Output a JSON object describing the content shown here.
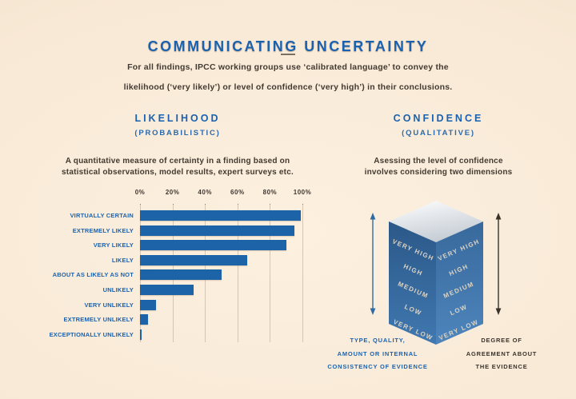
{
  "page": {
    "title": "COMMUNICATING UNCERTAINTY",
    "subtitle": {
      "line1": "For all findings, IPCC working groups use ‘calibrated language’ to convey the",
      "line2": "likelihood (‘very likely’) or level of confidence (‘very high’) in their conclusions."
    }
  },
  "likelihood_section": {
    "heading": "LIKELIHOOD",
    "subheading": "(PROBABILISTIC)",
    "description": {
      "line1": "A quantitative measure of certainty in a finding based on",
      "line2": "statistical observations, model results, expert surveys etc."
    }
  },
  "confidence_section": {
    "heading": "CONFIDENCE",
    "subheading": "(QUALITATIVE)",
    "description": {
      "line1": "Asessing the level of confidence",
      "line2": "involves considering two dimensions"
    },
    "cube": {
      "left_face_labels": [
        "VERY HIGH",
        "HIGH",
        "MEDIUM",
        "LOW",
        "VERY LOW"
      ],
      "right_face_labels": [
        "VERY HIGH",
        "HIGH",
        "MEDIUM",
        "LOW",
        "VERY LOW"
      ]
    },
    "evidence_caption": {
      "line1": "TYPE, QUALITY,",
      "line2": "AMOUNT OR INTERNAL",
      "line3": "CONSISTENCY OF EVIDENCE"
    },
    "agreement_caption": {
      "line1": "DEGREE OF",
      "line2": "AGREEMENT ABOUT",
      "line3": "THE EVIDENCE"
    }
  },
  "chart_data": {
    "type": "bar",
    "orientation": "horizontal",
    "title": "IPCC likelihood scale",
    "categories": [
      "VIRTUALLY CERTAIN",
      "EXTREMELY LIKELY",
      "VERY LIKELY",
      "LIKELY",
      "ABOUT AS LIKELY AS NOT",
      "UNLIKELY",
      "VERY UNLIKELY",
      "EXTREMELY UNLIKELY",
      "EXCEPTIONALLY UNLIKELY"
    ],
    "values": [
      99,
      95,
      90,
      66,
      50,
      33,
      10,
      5,
      1
    ],
    "unit": "%",
    "x_ticks": [
      "0%",
      "20%",
      "40%",
      "60%",
      "80%",
      "100%"
    ],
    "x_tick_values": [
      0,
      20,
      40,
      60,
      80,
      100
    ],
    "xlim": [
      0,
      100
    ],
    "grid": "vertical",
    "legend": "none",
    "bar_color": "#1d63a8",
    "label_color": "#1a62b0"
  },
  "colors": {
    "background": "#f8e9d6",
    "accent_blue": "#1a62b0",
    "bar_blue": "#1d63a8",
    "text_dark": "#433a31",
    "divider": "#7a6f61",
    "gridline": "#d5c6b2",
    "cube_left_face_top": "#2b5888",
    "cube_left_face_bottom": "#4078b0",
    "cube_right_face_top": "#38699c",
    "cube_right_face_bottom": "#4d85bc",
    "cube_top_face": "#c6cdd5",
    "cube_text": "#dcd3c3",
    "evidence_arrow": "#2e6ba5",
    "agreement_arrow": "#38312a"
  }
}
